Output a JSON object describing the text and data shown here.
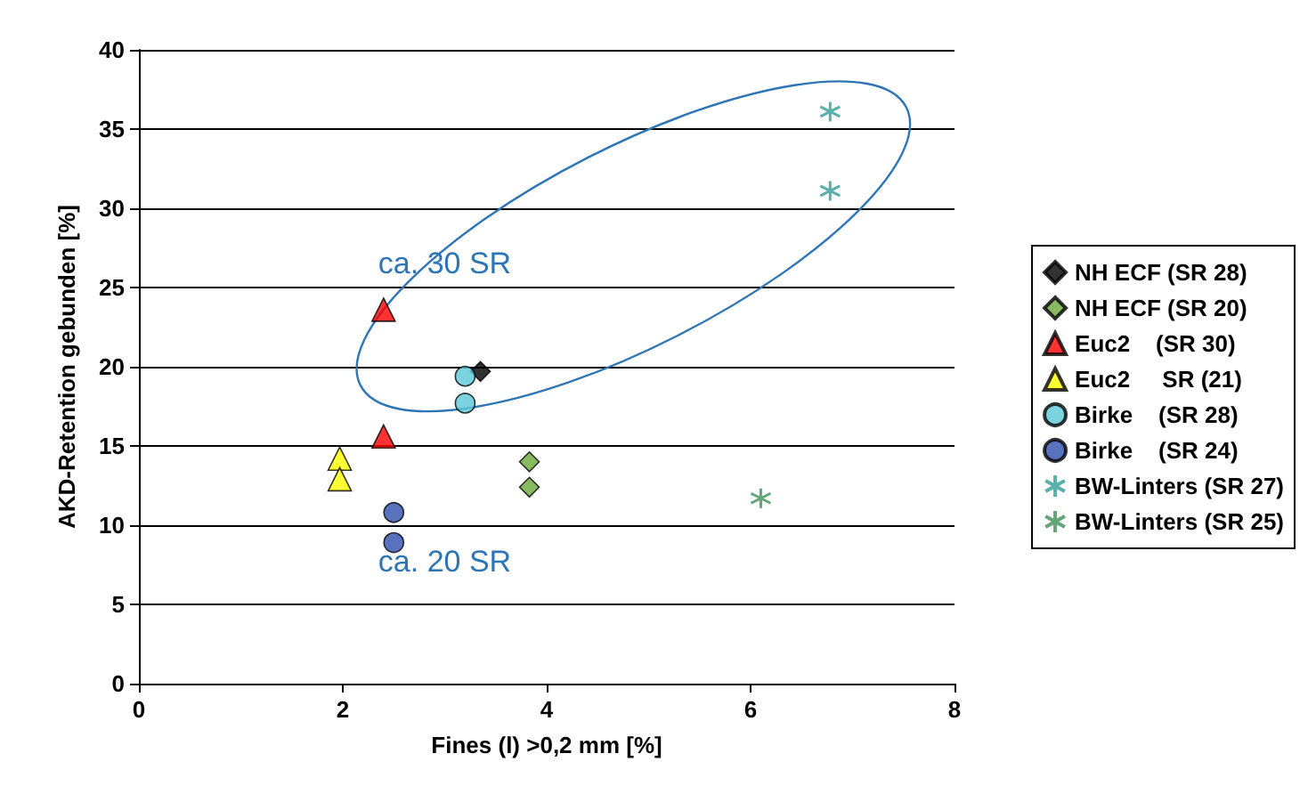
{
  "chart_data": {
    "type": "scatter",
    "xlabel": "Fines (l) >0,2 mm [%]",
    "ylabel": "AKD-Retention gebunden [%]",
    "xlim": [
      0,
      8
    ],
    "xticks": [
      0,
      2,
      4,
      6,
      8
    ],
    "ylim": [
      0,
      40
    ],
    "yticks": [
      0,
      5,
      10,
      15,
      20,
      25,
      30,
      35,
      40
    ],
    "grid": "y",
    "legend": "right",
    "series": [
      {
        "name": "NH ECF (SR 28)",
        "color": "#000000",
        "marker": "diamond",
        "x": [
          3.35
        ],
        "values": [
          19.7
        ]
      },
      {
        "name": "NH ECF (SR 20)",
        "color": "#6aaa3a",
        "marker": "diamond",
        "x": [
          3.83,
          3.83
        ],
        "values": [
          14.0,
          12.4
        ]
      },
      {
        "name": "Euc2    (SR 30)",
        "color": "#ff0000",
        "marker": "triangle",
        "x": [
          2.4,
          2.4
        ],
        "values": [
          23.6,
          15.6
        ]
      },
      {
        "name": "Euc2     SR (21)",
        "color": "#ffff00",
        "marker": "triangle",
        "x": [
          1.97,
          1.97
        ],
        "values": [
          14.2,
          12.9
        ]
      },
      {
        "name": "Birke    (SR 28)",
        "color": "#5bc8d8",
        "marker": "circle",
        "x": [
          3.2,
          3.2
        ],
        "values": [
          19.4,
          17.7
        ]
      },
      {
        "name": "Birke    (SR 24)",
        "color": "#2f4fae",
        "marker": "circle",
        "x": [
          2.5,
          2.5
        ],
        "values": [
          10.8,
          8.9
        ]
      },
      {
        "name": "BW-Linters (SR 27)",
        "color": "#2f9c96",
        "marker": "cross",
        "x": [
          6.78,
          6.78
        ],
        "values": [
          36.1,
          31.1
        ]
      },
      {
        "name": "BW-Linters (SR 25)",
        "color": "#3d8f55",
        "marker": "cross",
        "x": [
          6.1
        ],
        "values": [
          11.7
        ]
      }
    ],
    "annotations": [
      "ca. 30 SR",
      "ca. 20 SR"
    ]
  }
}
